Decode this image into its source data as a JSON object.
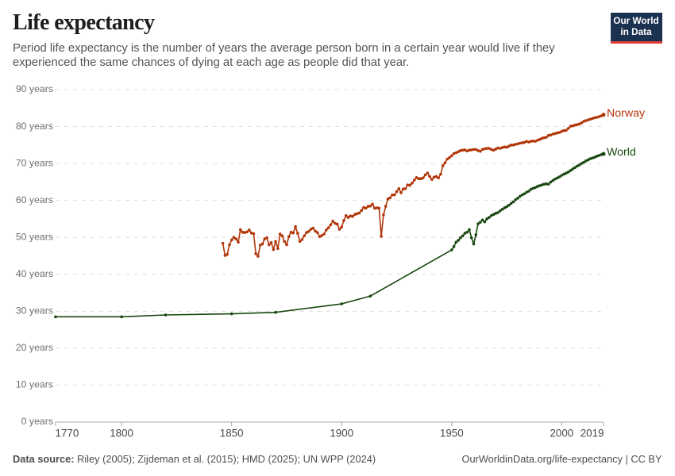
{
  "header": {
    "title": "Life expectancy",
    "subtitle_lines": [
      "Period life expectancy is the number of years the average person born in a certain year would live if they",
      "experienced the same chances of dying at each age as people did that year."
    ],
    "logo": {
      "line1": "Our World",
      "line2": "in Data",
      "background_color": "#1b3150",
      "accent_color": "#e63e36",
      "text_color": "#ffffff"
    }
  },
  "footer": {
    "source_label": "Data source:",
    "source_text": "Riley (2005); Zijdeman et al. (2015); HMD (2025); UN WPP (2024)",
    "attribution": "OurWorldinData.org/life-expectancy | CC BY"
  },
  "chart_data": {
    "type": "line",
    "title": "Life expectancy",
    "xlabel": "",
    "ylabel": "",
    "xlim": [
      1770,
      2019
    ],
    "ylim": [
      0,
      90
    ],
    "grid": "horizontal-dashed",
    "legend_position": "end-of-line-labels",
    "x_ticks": [
      1770,
      1800,
      1850,
      1900,
      1950,
      2000,
      2019
    ],
    "x_tick_labels": [
      "1770",
      "1800",
      "1850",
      "1900",
      "1950",
      "2000",
      "2019"
    ],
    "y_ticks": [
      0,
      10,
      20,
      30,
      40,
      50,
      60,
      70,
      80,
      90
    ],
    "y_tick_labels": [
      "0 years",
      "10 years",
      "20 years",
      "30 years",
      "40 years",
      "50 years",
      "60 years",
      "70 years",
      "80 years",
      "90 years"
    ],
    "series": [
      {
        "name": "Norway",
        "color": "#b13507",
        "points": [
          [
            1846,
            48.4
          ],
          [
            1847,
            45.1
          ],
          [
            1848,
            45.4
          ],
          [
            1849,
            48.0
          ],
          [
            1850,
            49.3
          ],
          [
            1851,
            50.0
          ],
          [
            1852,
            49.6
          ],
          [
            1853,
            48.7
          ],
          [
            1854,
            52.1
          ],
          [
            1855,
            51.4
          ],
          [
            1856,
            51.3
          ],
          [
            1857,
            51.5
          ],
          [
            1858,
            52.0
          ],
          [
            1859,
            51.2
          ],
          [
            1860,
            51.0
          ],
          [
            1861,
            45.6
          ],
          [
            1862,
            44.9
          ],
          [
            1863,
            47.9
          ],
          [
            1864,
            48.2
          ],
          [
            1865,
            49.6
          ],
          [
            1866,
            49.9
          ],
          [
            1867,
            48.0
          ],
          [
            1868,
            48.6
          ],
          [
            1869,
            46.7
          ],
          [
            1870,
            48.9
          ],
          [
            1871,
            47.0
          ],
          [
            1872,
            50.9
          ],
          [
            1873,
            50.4
          ],
          [
            1874,
            48.9
          ],
          [
            1875,
            48.0
          ],
          [
            1876,
            50.2
          ],
          [
            1877,
            51.4
          ],
          [
            1878,
            51.2
          ],
          [
            1879,
            52.9
          ],
          [
            1880,
            51.1
          ],
          [
            1881,
            48.9
          ],
          [
            1882,
            49.4
          ],
          [
            1883,
            50.4
          ],
          [
            1884,
            51.3
          ],
          [
            1885,
            51.6
          ],
          [
            1886,
            52.2
          ],
          [
            1887,
            52.5
          ],
          [
            1888,
            51.7
          ],
          [
            1889,
            51.3
          ],
          [
            1890,
            50.2
          ],
          [
            1891,
            50.5
          ],
          [
            1892,
            50.9
          ],
          [
            1893,
            52.0
          ],
          [
            1894,
            52.6
          ],
          [
            1895,
            53.4
          ],
          [
            1896,
            54.4
          ],
          [
            1897,
            53.8
          ],
          [
            1898,
            53.6
          ],
          [
            1899,
            52.2
          ],
          [
            1900,
            52.8
          ],
          [
            1901,
            54.6
          ],
          [
            1902,
            55.9
          ],
          [
            1903,
            55.4
          ],
          [
            1904,
            55.8
          ],
          [
            1905,
            55.7
          ],
          [
            1906,
            56.2
          ],
          [
            1907,
            56.4
          ],
          [
            1908,
            56.6
          ],
          [
            1909,
            57.3
          ],
          [
            1910,
            58.1
          ],
          [
            1911,
            57.9
          ],
          [
            1912,
            58.4
          ],
          [
            1913,
            58.5
          ],
          [
            1914,
            59.0
          ],
          [
            1915,
            57.9
          ],
          [
            1916,
            58.0
          ],
          [
            1917,
            57.9
          ],
          [
            1918,
            50.3
          ],
          [
            1919,
            56.1
          ],
          [
            1920,
            58.4
          ],
          [
            1921,
            60.4
          ],
          [
            1922,
            60.7
          ],
          [
            1923,
            61.5
          ],
          [
            1924,
            61.5
          ],
          [
            1925,
            62.4
          ],
          [
            1926,
            63.2
          ],
          [
            1927,
            62.1
          ],
          [
            1928,
            63.1
          ],
          [
            1929,
            63.2
          ],
          [
            1930,
            64.2
          ],
          [
            1931,
            64.1
          ],
          [
            1932,
            64.7
          ],
          [
            1933,
            65.5
          ],
          [
            1934,
            66.2
          ],
          [
            1935,
            65.9
          ],
          [
            1936,
            65.9
          ],
          [
            1937,
            66.1
          ],
          [
            1938,
            66.9
          ],
          [
            1939,
            67.4
          ],
          [
            1940,
            66.5
          ],
          [
            1941,
            65.7
          ],
          [
            1942,
            66.3
          ],
          [
            1943,
            66.5
          ],
          [
            1944,
            66.1
          ],
          [
            1945,
            67.1
          ],
          [
            1946,
            69.4
          ],
          [
            1947,
            70.2
          ],
          [
            1948,
            71.2
          ],
          [
            1949,
            71.6
          ],
          [
            1950,
            72.1
          ],
          [
            1951,
            72.7
          ],
          [
            1952,
            72.9
          ],
          [
            1953,
            73.2
          ],
          [
            1954,
            73.5
          ],
          [
            1955,
            73.6
          ],
          [
            1956,
            73.7
          ],
          [
            1957,
            73.4
          ],
          [
            1958,
            73.6
          ],
          [
            1959,
            73.7
          ],
          [
            1960,
            73.8
          ],
          [
            1961,
            73.8
          ],
          [
            1962,
            73.5
          ],
          [
            1963,
            73.3
          ],
          [
            1964,
            73.8
          ],
          [
            1965,
            74.0
          ],
          [
            1966,
            74.1
          ],
          [
            1967,
            74.1
          ],
          [
            1968,
            73.8
          ],
          [
            1969,
            73.6
          ],
          [
            1970,
            73.9
          ],
          [
            1971,
            74.2
          ],
          [
            1972,
            74.1
          ],
          [
            1973,
            74.3
          ],
          [
            1974,
            74.5
          ],
          [
            1975,
            74.4
          ],
          [
            1976,
            74.7
          ],
          [
            1977,
            75.0
          ],
          [
            1978,
            75.0
          ],
          [
            1979,
            75.2
          ],
          [
            1980,
            75.3
          ],
          [
            1981,
            75.5
          ],
          [
            1982,
            75.6
          ],
          [
            1983,
            75.7
          ],
          [
            1984,
            76.0
          ],
          [
            1985,
            75.8
          ],
          [
            1986,
            76.0
          ],
          [
            1987,
            76.1
          ],
          [
            1988,
            76.0
          ],
          [
            1989,
            76.3
          ],
          [
            1990,
            76.5
          ],
          [
            1991,
            76.8
          ],
          [
            1992,
            77.0
          ],
          [
            1993,
            77.1
          ],
          [
            1994,
            77.6
          ],
          [
            1995,
            77.7
          ],
          [
            1996,
            78.0
          ],
          [
            1997,
            78.1
          ],
          [
            1998,
            78.3
          ],
          [
            1999,
            78.4
          ],
          [
            2000,
            78.7
          ],
          [
            2001,
            78.9
          ],
          [
            2002,
            79.0
          ],
          [
            2003,
            79.5
          ],
          [
            2004,
            80.1
          ],
          [
            2005,
            80.2
          ],
          [
            2006,
            80.4
          ],
          [
            2007,
            80.5
          ],
          [
            2008,
            80.7
          ],
          [
            2009,
            81.0
          ],
          [
            2010,
            81.4
          ],
          [
            2011,
            81.6
          ],
          [
            2012,
            81.8
          ],
          [
            2013,
            82.0
          ],
          [
            2014,
            82.2
          ],
          [
            2015,
            82.4
          ],
          [
            2016,
            82.5
          ],
          [
            2017,
            82.7
          ],
          [
            2018,
            82.9
          ],
          [
            2019,
            83.2
          ]
        ]
      },
      {
        "name": "World",
        "color": "#18470f",
        "points": [
          [
            1770,
            28.5
          ],
          [
            1800,
            28.5
          ],
          [
            1820,
            29.0
          ],
          [
            1850,
            29.3
          ],
          [
            1870,
            29.7
          ],
          [
            1900,
            32.0
          ],
          [
            1913,
            34.1
          ],
          [
            1950,
            46.6
          ],
          [
            1951,
            47.5
          ],
          [
            1952,
            48.7
          ],
          [
            1953,
            49.2
          ],
          [
            1954,
            49.9
          ],
          [
            1955,
            50.4
          ],
          [
            1956,
            51.1
          ],
          [
            1957,
            51.4
          ],
          [
            1958,
            52.1
          ],
          [
            1959,
            49.9
          ],
          [
            1960,
            48.2
          ],
          [
            1961,
            50.7
          ],
          [
            1962,
            53.7
          ],
          [
            1963,
            54.1
          ],
          [
            1964,
            54.7
          ],
          [
            1965,
            54.2
          ],
          [
            1966,
            55.0
          ],
          [
            1967,
            55.4
          ],
          [
            1968,
            55.9
          ],
          [
            1969,
            56.2
          ],
          [
            1970,
            56.5
          ],
          [
            1971,
            56.7
          ],
          [
            1972,
            57.2
          ],
          [
            1973,
            57.6
          ],
          [
            1974,
            58.0
          ],
          [
            1975,
            58.3
          ],
          [
            1976,
            58.7
          ],
          [
            1977,
            59.2
          ],
          [
            1978,
            59.6
          ],
          [
            1979,
            60.2
          ],
          [
            1980,
            60.6
          ],
          [
            1981,
            61.1
          ],
          [
            1982,
            61.5
          ],
          [
            1983,
            61.8
          ],
          [
            1984,
            62.2
          ],
          [
            1985,
            62.5
          ],
          [
            1986,
            63.0
          ],
          [
            1987,
            63.3
          ],
          [
            1988,
            63.5
          ],
          [
            1989,
            63.8
          ],
          [
            1990,
            64.0
          ],
          [
            1991,
            64.2
          ],
          [
            1992,
            64.4
          ],
          [
            1993,
            64.5
          ],
          [
            1994,
            64.4
          ],
          [
            1995,
            65.0
          ],
          [
            1996,
            65.4
          ],
          [
            1997,
            65.8
          ],
          [
            1998,
            66.1
          ],
          [
            1999,
            66.4
          ],
          [
            2000,
            66.8
          ],
          [
            2001,
            67.1
          ],
          [
            2002,
            67.4
          ],
          [
            2003,
            67.7
          ],
          [
            2004,
            68.1
          ],
          [
            2005,
            68.5
          ],
          [
            2006,
            68.9
          ],
          [
            2007,
            69.3
          ],
          [
            2008,
            69.6
          ],
          [
            2009,
            70.0
          ],
          [
            2010,
            70.3
          ],
          [
            2011,
            70.7
          ],
          [
            2012,
            71.0
          ],
          [
            2013,
            71.3
          ],
          [
            2014,
            71.5
          ],
          [
            2015,
            71.7
          ],
          [
            2016,
            72.0
          ],
          [
            2017,
            72.2
          ],
          [
            2018,
            72.4
          ],
          [
            2019,
            72.6
          ]
        ]
      }
    ]
  },
  "style": {
    "background": "#ffffff",
    "title_color": "#1d1d1d",
    "subtitle_color": "#535353",
    "y_tick_color": "#6e6e6e",
    "x_tick_color": "#4a4a4a",
    "footer_color": "#4e4e4e",
    "grid_color": "#dddddd",
    "axis_color": "#a8a8a8"
  }
}
